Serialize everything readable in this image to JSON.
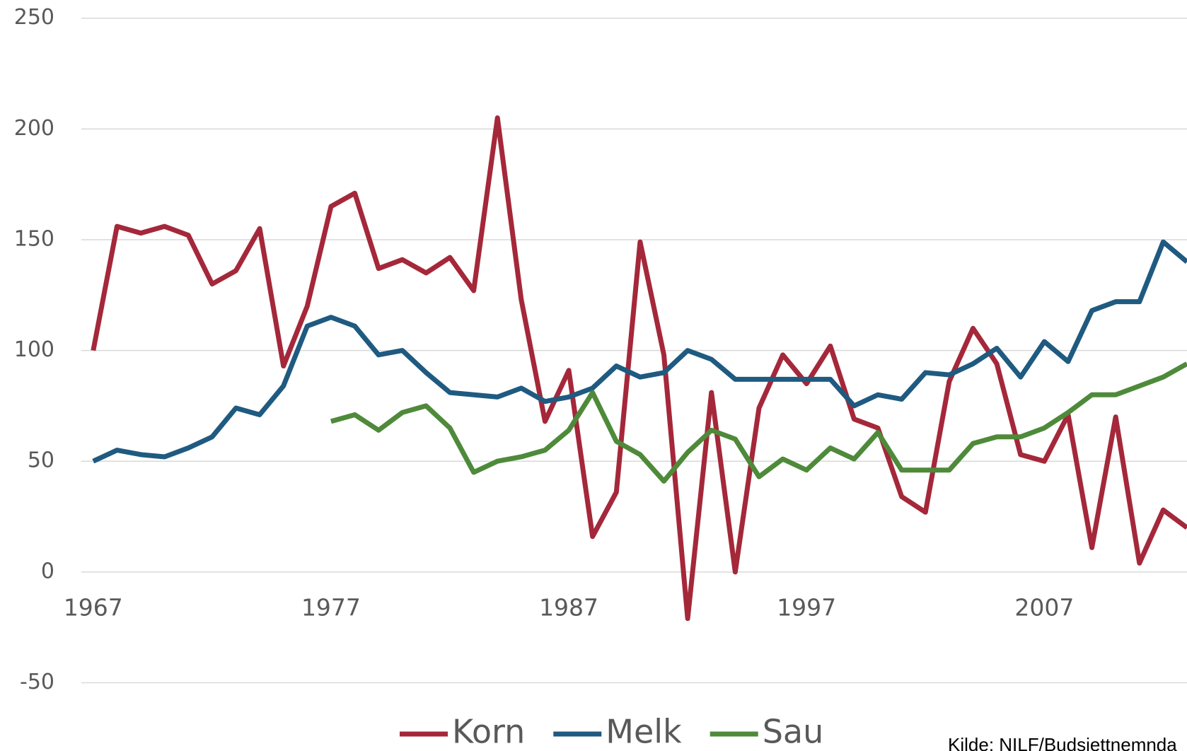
{
  "chart_data": {
    "type": "line",
    "x": [
      1967,
      1968,
      1969,
      1970,
      1971,
      1972,
      1973,
      1974,
      1975,
      1976,
      1977,
      1978,
      1979,
      1980,
      1981,
      1982,
      1983,
      1984,
      1985,
      1986,
      1987,
      1988,
      1989,
      1990,
      1991,
      1992,
      1993,
      1994,
      1995,
      1996,
      1997,
      1998,
      1999,
      2000,
      2001,
      2002,
      2003,
      2004,
      2005,
      2006,
      2007,
      2008,
      2009,
      2010,
      2011,
      2012,
      2013
    ],
    "series": [
      {
        "name": "Korn",
        "color": "#a4283a",
        "values": [
          100,
          156,
          153,
          156,
          152,
          130,
          136,
          155,
          93,
          120,
          165,
          171,
          137,
          141,
          135,
          142,
          127,
          205,
          123,
          68,
          91,
          16,
          36,
          149,
          98,
          -21,
          81,
          0,
          74,
          98,
          85,
          102,
          69,
          65,
          34,
          27,
          86,
          110,
          94,
          53,
          50,
          71,
          11,
          70,
          4,
          28,
          20
        ]
      },
      {
        "name": "Melk",
        "color": "#1f5a80",
        "values": [
          50,
          55,
          53,
          52,
          56,
          61,
          74,
          71,
          84,
          111,
          115,
          111,
          98,
          100,
          90,
          81,
          80,
          79,
          83,
          77,
          79,
          83,
          93,
          88,
          90,
          100,
          96,
          87,
          87,
          87,
          87,
          87,
          75,
          80,
          78,
          90,
          89,
          94,
          101,
          88,
          104,
          95,
          118,
          122,
          122,
          149,
          140
        ]
      },
      {
        "name": "Sau",
        "color": "#4e8a3a",
        "values": [
          null,
          null,
          null,
          null,
          null,
          null,
          null,
          null,
          null,
          null,
          68,
          71,
          64,
          72,
          75,
          65,
          45,
          50,
          52,
          55,
          64,
          81,
          59,
          53,
          41,
          54,
          64,
          60,
          43,
          51,
          46,
          56,
          51,
          63,
          46,
          46,
          46,
          58,
          61,
          61,
          65,
          72,
          80,
          80,
          84,
          88,
          94
        ]
      }
    ],
    "xlim": [
      1966.5,
      2013
    ],
    "xticks": [
      1967,
      1977,
      1987,
      1997,
      2007
    ],
    "ylim": [
      -50,
      250
    ],
    "yticks": [
      -50,
      0,
      50,
      100,
      150,
      200,
      250
    ],
    "grid": true,
    "legend": "bottom",
    "source": "Kilde: NILF/Budsjettnemnda"
  }
}
